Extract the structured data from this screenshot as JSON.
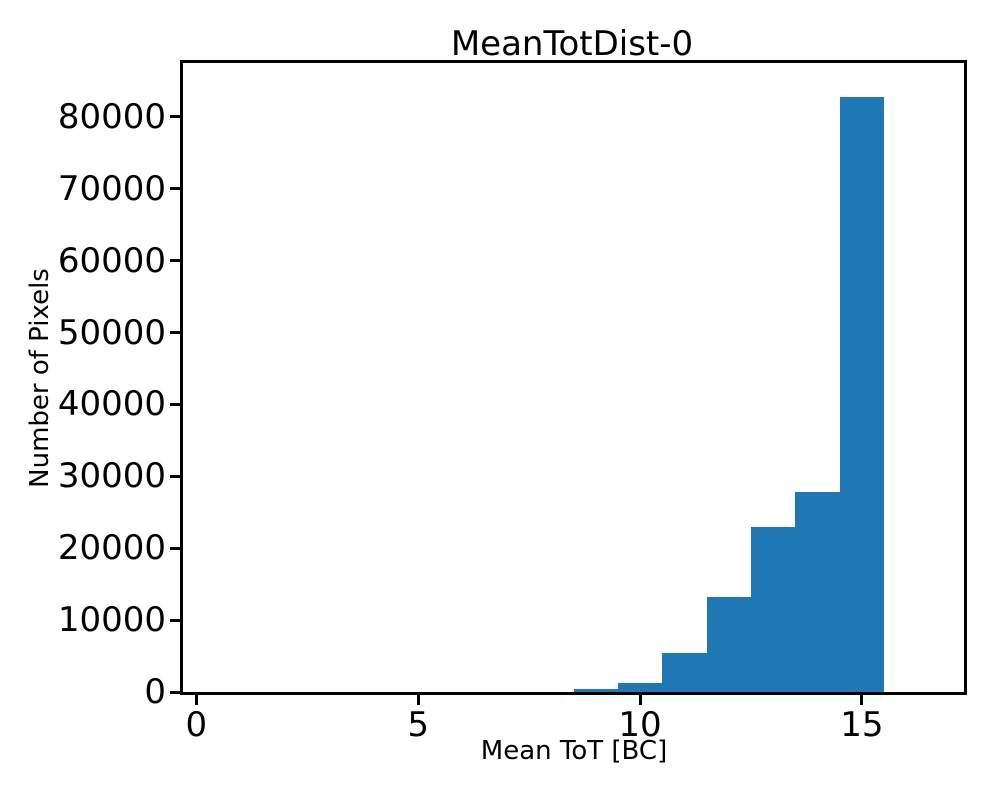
{
  "figure": {
    "background": "#ffffff",
    "text_color": "#000000"
  },
  "chart_data": {
    "type": "bar",
    "subtype": "histogram",
    "title": "MeanTotDist-0",
    "xlabel": "Mean ToT [BC]",
    "ylabel": "Number of Pixels",
    "bar_color": "#1f77b4",
    "axis_color": "#000000",
    "grid": false,
    "legend": null,
    "bin_edges": [
      8.5,
      9.5,
      10.5,
      11.5,
      12.5,
      13.5,
      14.5,
      15.5
    ],
    "counts": [
      400,
      1300,
      5400,
      13200,
      22900,
      27800,
      82800
    ],
    "xlim": [
      -0.3,
      17.3
    ],
    "ylim": [
      0,
      87500
    ],
    "xticks": [
      0,
      5,
      10,
      15
    ],
    "yticks": [
      0,
      10000,
      20000,
      30000,
      40000,
      50000,
      60000,
      70000,
      80000
    ]
  }
}
